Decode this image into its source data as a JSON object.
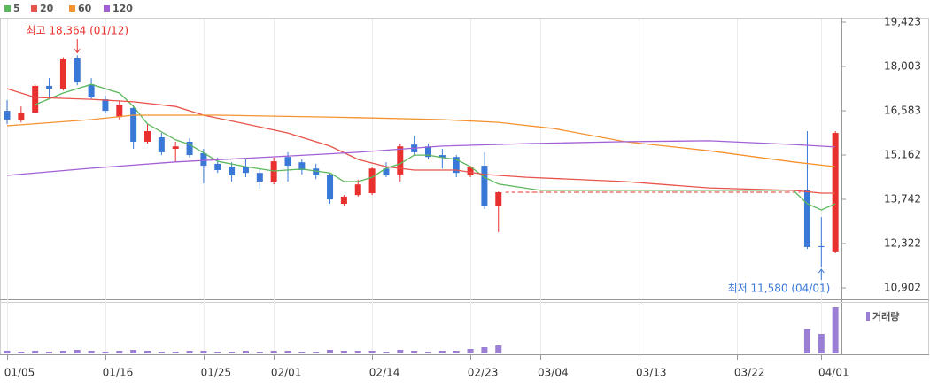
{
  "chart_data": {
    "type": "candlestick",
    "up_color": "#e8312f",
    "down_color": "#3a78d8",
    "categories": [
      "01/05",
      null,
      null,
      null,
      null,
      null,
      null,
      "01/16",
      null,
      null,
      null,
      null,
      null,
      null,
      "01/25",
      null,
      null,
      null,
      null,
      "02/01",
      null,
      null,
      null,
      null,
      null,
      null,
      "02/14",
      null,
      null,
      null,
      null,
      null,
      null,
      "02/23",
      null,
      null,
      null,
      null,
      "03/04",
      null,
      null,
      null,
      null,
      null,
      null,
      "03/13",
      null,
      null,
      null,
      null,
      null,
      null,
      "03/22",
      null,
      null,
      null,
      null,
      null,
      "04/01",
      null
    ],
    "open": [
      16580,
      16270,
      16520,
      17380,
      17290,
      18260,
      17430,
      16950,
      16380,
      16670,
      15590,
      15730,
      15360,
      15590,
      15220,
      14880,
      14790,
      14790,
      14590,
      14310,
      15100,
      14930,
      14730,
      14510,
      13600,
      13880,
      13940,
      14730,
      14540,
      15500,
      15440,
      15160,
      15100,
      14510,
      14820,
      13540,
      null,
      null,
      null,
      null,
      null,
      null,
      null,
      null,
      null,
      null,
      null,
      null,
      null,
      null,
      null,
      null,
      null,
      null,
      null,
      null,
      null,
      14030,
      12240,
      12070
    ],
    "high": [
      16920,
      16720,
      17430,
      17630,
      18300,
      18364,
      17630,
      17060,
      16920,
      16780,
      16160,
      15870,
      15590,
      15700,
      15360,
      15080,
      14930,
      15020,
      14730,
      15080,
      15250,
      15020,
      14880,
      14590,
      13880,
      14370,
      14790,
      14930,
      15530,
      15780,
      15530,
      15360,
      15160,
      14820,
      15250,
      13990,
      null,
      null,
      null,
      null,
      null,
      null,
      null,
      null,
      null,
      null,
      null,
      null,
      null,
      null,
      null,
      null,
      null,
      null,
      null,
      null,
      null,
      15930,
      13170,
      15930
    ],
    "low": [
      16160,
      16210,
      16500,
      16950,
      17230,
      17400,
      16950,
      16500,
      16300,
      15360,
      15530,
      15160,
      14930,
      15080,
      14250,
      14590,
      14310,
      14450,
      14080,
      14220,
      14310,
      14540,
      14390,
      13600,
      13540,
      13830,
      13880,
      14450,
      14310,
      15160,
      15020,
      14730,
      14450,
      14450,
      13430,
      12690,
      null,
      null,
      null,
      null,
      null,
      null,
      null,
      null,
      null,
      null,
      null,
      null,
      null,
      null,
      null,
      null,
      null,
      null,
      null,
      null,
      null,
      12150,
      11580,
      12010
    ],
    "close": [
      16300,
      16500,
      17380,
      17290,
      18230,
      17490,
      17010,
      16580,
      16780,
      15590,
      15930,
      15250,
      15440,
      15160,
      14820,
      14680,
      14510,
      14590,
      14310,
      14960,
      14820,
      14680,
      14510,
      13740,
      13830,
      14220,
      14730,
      14510,
      15440,
      15250,
      15100,
      15080,
      14590,
      14790,
      13540,
      13970,
      null,
      null,
      null,
      null,
      null,
      null,
      null,
      null,
      null,
      null,
      null,
      null,
      null,
      null,
      null,
      null,
      null,
      null,
      null,
      null,
      null,
      12210,
      12210,
      15870
    ],
    "volume": {
      "name": "거래량",
      "color": "#9b7fd4",
      "values": [
        3,
        2,
        3,
        2,
        3,
        4,
        3,
        2,
        3,
        4,
        3,
        2,
        2,
        3,
        3,
        2,
        2,
        3,
        2,
        3,
        3,
        2,
        2,
        4,
        3,
        3,
        3,
        2,
        4,
        3,
        2,
        3,
        3,
        5,
        7,
        9,
        null,
        null,
        null,
        null,
        null,
        null,
        null,
        null,
        null,
        null,
        null,
        null,
        null,
        null,
        null,
        null,
        null,
        null,
        null,
        null,
        null,
        28,
        22,
        52
      ]
    },
    "moving_averages": [
      {
        "name": "5",
        "color": "#5cb85c",
        "x": [
          2,
          4,
          6,
          7,
          8,
          9,
          10,
          12,
          13,
          15,
          17,
          19,
          21,
          23,
          24,
          25,
          26,
          27,
          28,
          29,
          30,
          31,
          32,
          33,
          34,
          35,
          38,
          56,
          57,
          58,
          59
        ],
        "values": [
          16780,
          17150,
          17430,
          17290,
          17150,
          16720,
          16160,
          15650,
          15500,
          14960,
          14790,
          14650,
          14710,
          14590,
          14310,
          14310,
          14450,
          14740,
          14880,
          15160,
          15160,
          15080,
          15020,
          14790,
          14450,
          14230,
          14030,
          14030,
          13600,
          13400,
          13600
        ]
      },
      {
        "name": "20",
        "color": "#e8534a",
        "x": [
          0,
          2,
          6,
          9,
          12,
          14,
          17,
          20,
          23,
          25,
          27,
          29,
          32,
          34,
          37,
          44,
          50,
          56,
          58,
          59
        ],
        "values": [
          17290,
          17010,
          16950,
          16870,
          16720,
          16440,
          16160,
          15870,
          15450,
          15020,
          14790,
          14680,
          14680,
          14540,
          14450,
          14310,
          14110,
          14030,
          13940,
          13940
        ]
      },
      {
        "name": "60",
        "color": "#f5922f",
        "x": [
          0,
          6,
          9,
          15,
          25,
          31,
          35,
          39,
          44,
          50,
          56,
          59
        ],
        "values": [
          16100,
          16300,
          16440,
          16440,
          16360,
          16300,
          16210,
          16010,
          15590,
          15300,
          14940,
          14790
        ]
      },
      {
        "name": "120",
        "color": "#a35fd6",
        "x": [
          0,
          6,
          12,
          18,
          25,
          31,
          37,
          44,
          50,
          56,
          59
        ],
        "values": [
          14510,
          14740,
          14940,
          15080,
          15250,
          15450,
          15530,
          15590,
          15620,
          15500,
          15420
        ]
      }
    ],
    "annotations": [
      {
        "text": "최고 18,364 (01/12)",
        "value": 18364,
        "color": "#e8312f"
      },
      {
        "text": "최저 11,580 (04/01)",
        "value": 11580,
        "color": "#3a78d8"
      }
    ],
    "ylim": [
      10902,
      19423
    ],
    "yticks": [
      {
        "value": 10902,
        "label": "10,902"
      },
      {
        "value": 12322,
        "label": "12,322"
      },
      {
        "value": 13742,
        "label": "13,742"
      },
      {
        "value": 15162,
        "label": "15,162"
      },
      {
        "value": 16583,
        "label": "16,583"
      },
      {
        "value": 18003,
        "label": "18,003"
      },
      {
        "value": 19423,
        "label": "19,423"
      }
    ]
  }
}
